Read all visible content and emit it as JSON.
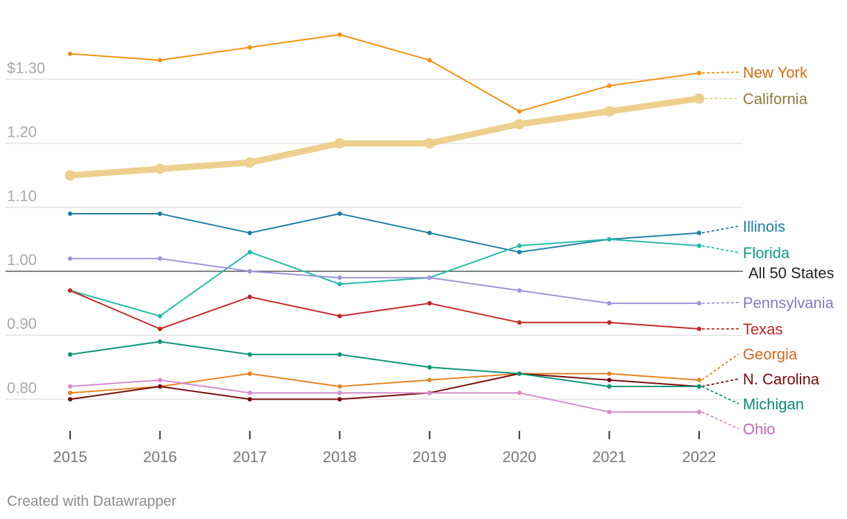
{
  "chart_data": {
    "type": "line",
    "title": "",
    "xlabel": "",
    "ylabel": "",
    "x": [
      2015,
      2016,
      2017,
      2018,
      2019,
      2020,
      2021,
      2022
    ],
    "ylim": [
      0.75,
      1.37
    ],
    "y_ticks": [
      {
        "value": 0.8,
        "label": "0.80"
      },
      {
        "value": 0.9,
        "label": "0.90"
      },
      {
        "value": 1.0,
        "label": "1.00"
      },
      {
        "value": 1.1,
        "label": "1.10"
      },
      {
        "value": 1.2,
        "label": "1.20"
      },
      {
        "value": 1.3,
        "label": "$1.30"
      }
    ],
    "reference_line": {
      "value": 1.0,
      "label": "All 50 States",
      "color": "#555555"
    },
    "series": [
      {
        "name": "New York",
        "color": "#f4900c",
        "label_color": "#d4700a",
        "values": [
          1.34,
          1.33,
          1.35,
          1.37,
          1.33,
          1.25,
          1.29,
          1.31
        ]
      },
      {
        "name": "California",
        "color": "#ecd08c",
        "label_color": "#8e7a3b",
        "highlight": true,
        "values": [
          1.15,
          1.16,
          1.17,
          1.2,
          1.2,
          1.23,
          1.25,
          1.27
        ]
      },
      {
        "name": "Illinois",
        "color": "#1d7fa3",
        "label_color": "#1d7fa3",
        "values": [
          1.09,
          1.09,
          1.06,
          1.09,
          1.06,
          1.03,
          1.05,
          1.06
        ]
      },
      {
        "name": "Florida",
        "color": "#1fbba6",
        "label_color": "#0f9e86",
        "values": [
          0.97,
          0.93,
          1.03,
          0.98,
          0.99,
          1.04,
          1.05,
          1.04
        ]
      },
      {
        "name": "Pennsylvania",
        "color": "#9a96d6",
        "label_color": "#7e7cc4",
        "values": [
          1.02,
          1.02,
          1.0,
          0.99,
          0.99,
          0.97,
          0.95,
          0.95
        ]
      },
      {
        "name": "Texas",
        "color": "#c42626",
        "label_color": "#c42626",
        "values": [
          0.97,
          0.91,
          0.96,
          0.93,
          0.95,
          0.92,
          0.92,
          0.91
        ]
      },
      {
        "name": "Georgia",
        "color": "#e8821e",
        "label_color": "#d2691e",
        "values": [
          0.81,
          0.82,
          0.84,
          0.82,
          0.83,
          0.84,
          0.84,
          0.83
        ]
      },
      {
        "name": "N. Carolina",
        "color": "#7a0a0a",
        "label_color": "#7a0a0a",
        "values": [
          0.8,
          0.82,
          0.8,
          0.8,
          0.81,
          0.84,
          0.83,
          0.82
        ]
      },
      {
        "name": "Michigan",
        "color": "#0a9478",
        "label_color": "#0a8a70",
        "values": [
          0.87,
          0.89,
          0.87,
          0.87,
          0.85,
          0.84,
          0.82,
          0.82
        ]
      },
      {
        "name": "Ohio",
        "color": "#d48cd0",
        "label_color": "#c069bb",
        "values": [
          0.82,
          0.83,
          0.81,
          0.81,
          0.81,
          0.81,
          0.78,
          0.78
        ]
      }
    ]
  },
  "footer": {
    "credit": "Created with Datawrapper"
  }
}
